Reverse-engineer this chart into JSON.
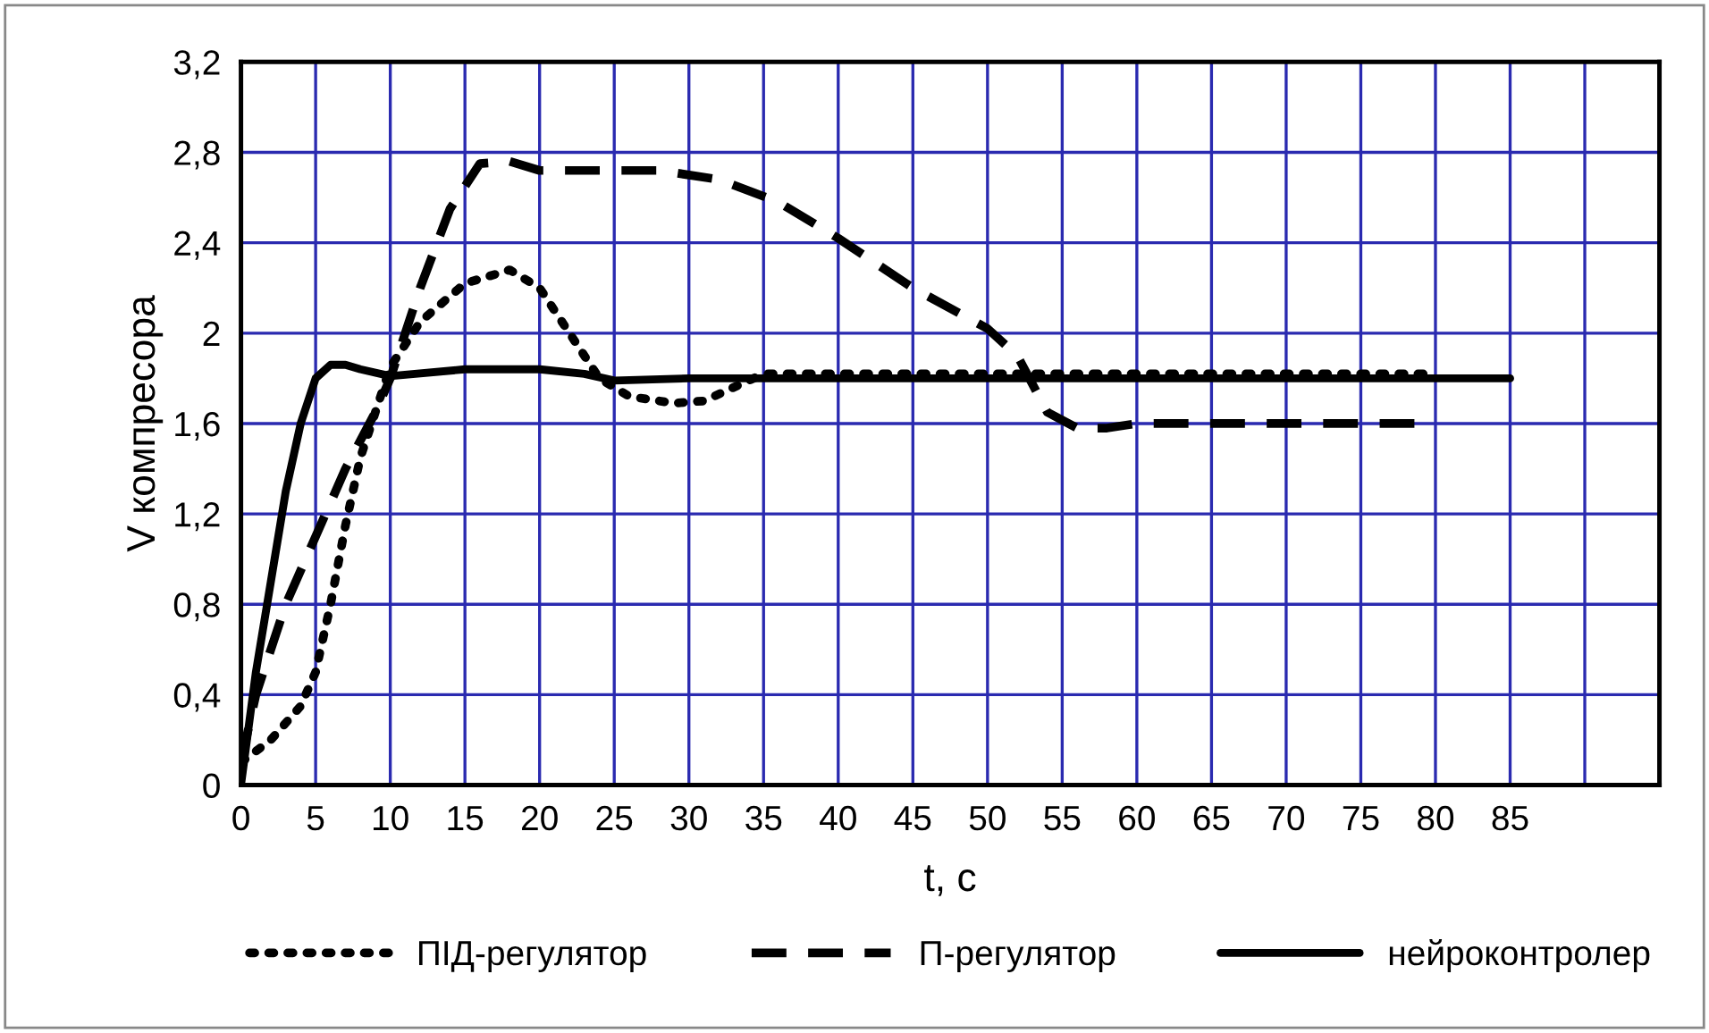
{
  "chart_data": {
    "type": "line",
    "xlabel": "t, с",
    "ylabel": "V компресора",
    "xlim": [
      0,
      95
    ],
    "xticks": [
      0,
      5,
      10,
      15,
      20,
      25,
      30,
      35,
      40,
      45,
      50,
      55,
      60,
      65,
      70,
      75,
      80,
      85,
      {
        "value": 90,
        "label": null
      },
      {
        "value": 95,
        "label": null
      }
    ],
    "ylim": [
      0,
      3.2
    ],
    "yticks": [
      0,
      {
        "value": 0.4,
        "label": "0,4"
      },
      {
        "value": 0.8,
        "label": "0,8"
      },
      {
        "value": 1.2,
        "label": "1,2"
      },
      {
        "value": 1.6,
        "label": "1,6"
      },
      2,
      {
        "value": 2.4,
        "label": "2,4"
      },
      {
        "value": 2.8,
        "label": "2,8"
      },
      {
        "value": 3.2,
        "label": "3,2"
      }
    ],
    "grid": true,
    "legend": "bottom",
    "marker": "none",
    "series": [
      {
        "name": "ПІД-регулятор",
        "color": "#000000",
        "line_style": "dotted",
        "x": [
          0,
          2,
          4,
          5,
          6,
          7,
          8,
          9,
          10,
          12,
          15,
          18,
          20,
          22,
          24,
          26,
          29,
          31,
          33,
          35,
          40,
          80
        ],
        "values": [
          0.1,
          0.2,
          0.35,
          0.5,
          0.8,
          1.15,
          1.45,
          1.65,
          1.85,
          2.05,
          2.22,
          2.28,
          2.2,
          2.0,
          1.8,
          1.72,
          1.69,
          1.7,
          1.76,
          1.82,
          1.82,
          1.82
        ]
      },
      {
        "name": "П-регулятор",
        "color": "#000000",
        "line_style": "dashed",
        "x": [
          0,
          1,
          3,
          5,
          7,
          9,
          10,
          12,
          14,
          16,
          18,
          20,
          28,
          32,
          36,
          40,
          45,
          50,
          52,
          54,
          56,
          58,
          60,
          79
        ],
        "values": [
          0.1,
          0.4,
          0.8,
          1.1,
          1.4,
          1.65,
          1.8,
          2.2,
          2.55,
          2.75,
          2.76,
          2.72,
          2.72,
          2.68,
          2.58,
          2.42,
          2.2,
          2.02,
          1.9,
          1.65,
          1.58,
          1.58,
          1.6,
          1.6
        ]
      },
      {
        "name": "нейроконтролер",
        "color": "#000000",
        "line_style": "solid",
        "x": [
          0,
          1,
          2,
          3,
          4,
          5,
          6,
          7,
          8,
          10,
          15,
          20,
          23,
          25,
          30,
          85
        ],
        "values": [
          0,
          0.5,
          0.9,
          1.3,
          1.6,
          1.8,
          1.86,
          1.86,
          1.84,
          1.81,
          1.84,
          1.84,
          1.82,
          1.79,
          1.8,
          1.8
        ]
      }
    ]
  }
}
